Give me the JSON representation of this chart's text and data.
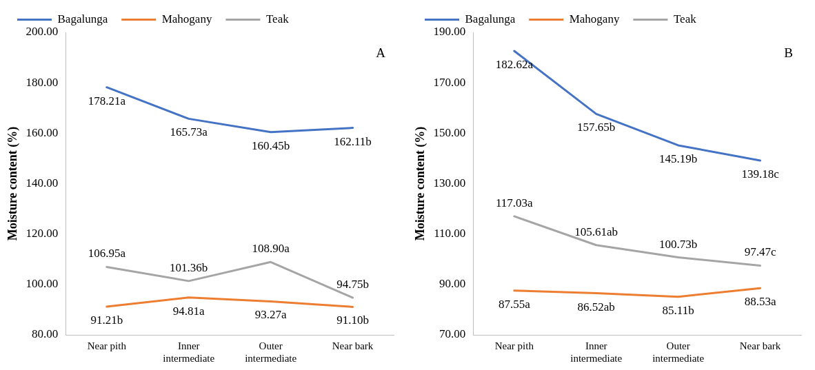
{
  "chart_data": [
    {
      "type": "line",
      "categories": [
        "Near pith",
        "Inner intermediate",
        "Outer intermediate",
        "Near bark"
      ],
      "ylabel": "Moisture content (%)",
      "ylim": [
        80,
        200
      ],
      "yticks": [
        {
          "value": 80,
          "label": "80.00"
        },
        {
          "value": 100,
          "label": "100.00"
        },
        {
          "value": 120,
          "label": "120.00"
        },
        {
          "value": 140,
          "label": "140.00"
        },
        {
          "value": 160,
          "label": "160.00"
        },
        {
          "value": 180,
          "label": "180.00"
        },
        {
          "value": 200,
          "label": "200.00"
        }
      ],
      "grid": false,
      "legend": "top",
      "marker": "none",
      "line_style": "solid",
      "annotations": [
        "A"
      ],
      "series": [
        {
          "name": "Bagalunga",
          "color": "#4472c4",
          "values": [
            178.21,
            165.73,
            160.45,
            162.11
          ],
          "value_labels": [
            "178.21a",
            "165.73a",
            "160.45b",
            "162.11b"
          ]
        },
        {
          "name": "Mahogany",
          "color": "#ed7d31",
          "values": [
            91.21,
            94.81,
            93.27,
            91.1
          ],
          "value_labels": [
            "91.21b",
            "94.81a",
            "93.27a",
            "91.10b"
          ]
        },
        {
          "name": "Teak",
          "color": "#a5a5a5",
          "values": [
            106.95,
            101.36,
            108.9,
            94.75
          ],
          "value_labels": [
            "106.95a",
            "101.36b",
            "108.90a",
            "94.75b"
          ]
        }
      ]
    },
    {
      "type": "line",
      "categories": [
        "Near pith",
        "Inner intermediate",
        "Outer intermediate",
        "Near bark"
      ],
      "ylabel": "Moisture content (%)",
      "ylim": [
        70,
        190
      ],
      "yticks": [
        {
          "value": 70,
          "label": "70.00"
        },
        {
          "value": 90,
          "label": "90.00"
        },
        {
          "value": 110,
          "label": "110.00"
        },
        {
          "value": 130,
          "label": "130.00"
        },
        {
          "value": 150,
          "label": "150.00"
        },
        {
          "value": 170,
          "label": "170.00"
        },
        {
          "value": 190,
          "label": "190.00"
        }
      ],
      "grid": false,
      "legend": "top",
      "marker": "none",
      "line_style": "solid",
      "annotations": [
        "B"
      ],
      "series": [
        {
          "name": "Bagalunga",
          "color": "#4472c4",
          "values": [
            182.62,
            157.65,
            145.19,
            139.18
          ],
          "value_labels": [
            "182.62a",
            "157.65b",
            "145.19b",
            "139.18c"
          ]
        },
        {
          "name": "Mahogany",
          "color": "#ed7d31",
          "values": [
            87.55,
            86.52,
            85.11,
            88.53
          ],
          "value_labels": [
            "87.55a",
            "86.52ab",
            "85.11b",
            "88.53a"
          ]
        },
        {
          "name": "Teak",
          "color": "#a5a5a5",
          "values": [
            117.03,
            105.61,
            100.73,
            97.47
          ],
          "value_labels": [
            "117.03a",
            "105.61ab",
            "100.73b",
            "97.47c"
          ]
        }
      ]
    }
  ]
}
